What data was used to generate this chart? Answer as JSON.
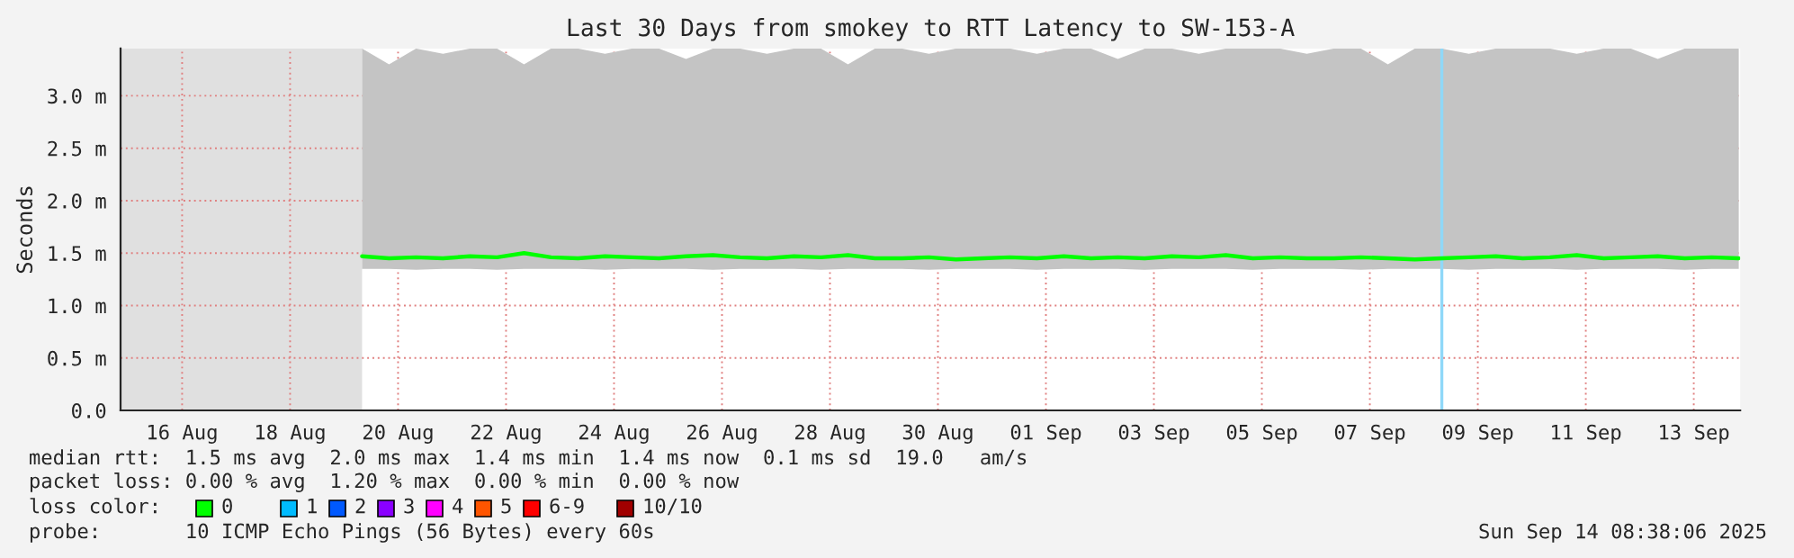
{
  "chart_data": {
    "type": "line",
    "title": "Last 30 Days from smokey to RTT Latency to SW-153-A",
    "ylabel": "Seconds",
    "x": [
      "2025-08-19T20:00",
      "2025-08-20T08:00",
      "2025-08-20T20:00",
      "2025-08-21T08:00",
      "2025-08-21T20:00",
      "2025-08-22T08:00",
      "2025-08-22T20:00",
      "2025-08-23T08:00",
      "2025-08-23T20:00",
      "2025-08-24T08:00",
      "2025-08-24T20:00",
      "2025-08-25T08:00",
      "2025-08-25T20:00",
      "2025-08-26T08:00",
      "2025-08-26T20:00",
      "2025-08-27T08:00",
      "2025-08-27T20:00",
      "2025-08-28T08:00",
      "2025-08-28T20:00",
      "2025-08-29T08:00",
      "2025-08-29T20:00",
      "2025-08-30T08:00",
      "2025-08-30T20:00",
      "2025-08-31T08:00",
      "2025-08-31T20:00",
      "2025-09-01T08:00",
      "2025-09-01T20:00",
      "2025-09-02T08:00",
      "2025-09-02T20:00",
      "2025-09-03T08:00",
      "2025-09-03T20:00",
      "2025-09-04T08:00",
      "2025-09-04T20:00",
      "2025-09-05T08:00",
      "2025-09-05T20:00",
      "2025-09-06T08:00",
      "2025-09-06T20:00",
      "2025-09-07T08:00",
      "2025-09-07T20:00",
      "2025-09-08T08:00",
      "2025-09-08T20:00",
      "2025-09-09T08:00",
      "2025-09-09T20:00",
      "2025-09-10T08:00",
      "2025-09-10T20:00",
      "2025-09-11T08:00",
      "2025-09-11T20:00",
      "2025-09-12T08:00",
      "2025-09-12T20:00",
      "2025-09-13T08:00",
      "2025-09-13T20:00",
      "2025-09-14T08:00"
    ],
    "series": [
      {
        "color": "#00ff00",
        "values": [
          1.47,
          1.45,
          1.46,
          1.45,
          1.47,
          1.46,
          1.5,
          1.46,
          1.45,
          1.47,
          1.46,
          1.45,
          1.47,
          1.48,
          1.46,
          1.45,
          1.47,
          1.46,
          1.48,
          1.45,
          1.45,
          1.46,
          1.44,
          1.45,
          1.46,
          1.45,
          1.47,
          1.45,
          1.46,
          1.45,
          1.47,
          1.46,
          1.48,
          1.45,
          1.46,
          1.45,
          1.45,
          1.46,
          1.45,
          1.44,
          1.45,
          1.46,
          1.47,
          1.45,
          1.46,
          1.48,
          1.45,
          1.46,
          1.47,
          1.45,
          1.46,
          1.45
        ],
        "lower": [
          1.35,
          1.35,
          1.34,
          1.35,
          1.35,
          1.34,
          1.35,
          1.35,
          1.35,
          1.34,
          1.35,
          1.35,
          1.35,
          1.34,
          1.35,
          1.35,
          1.35,
          1.34,
          1.35,
          1.35,
          1.35,
          1.34,
          1.35,
          1.35,
          1.35,
          1.34,
          1.35,
          1.35,
          1.35,
          1.34,
          1.35,
          1.35,
          1.35,
          1.34,
          1.35,
          1.35,
          1.35,
          1.34,
          1.35,
          1.35,
          1.35,
          1.34,
          1.35,
          1.35,
          1.35,
          1.34,
          1.35,
          1.35,
          1.35,
          1.34,
          1.35,
          1.35
        ],
        "upper": [
          3.45,
          3.3,
          3.45,
          3.4,
          3.45,
          3.45,
          3.3,
          3.45,
          3.45,
          3.4,
          3.45,
          3.45,
          3.35,
          3.45,
          3.45,
          3.4,
          3.45,
          3.45,
          3.3,
          3.45,
          3.45,
          3.4,
          3.45,
          3.45,
          3.45,
          3.4,
          3.45,
          3.45,
          3.35,
          3.45,
          3.45,
          3.4,
          3.45,
          3.45,
          3.45,
          3.4,
          3.45,
          3.45,
          3.3,
          3.45,
          3.45,
          3.4,
          3.45,
          3.45,
          3.45,
          3.4,
          3.45,
          3.45,
          3.35,
          3.45,
          3.45,
          3.45
        ]
      }
    ],
    "xlim": [
      "2025-08-15T08:38",
      "2025-09-14T08:38"
    ],
    "xticks": [
      {
        "value": "2025-08-16T12:00",
        "label": "16 Aug"
      },
      {
        "value": "2025-08-18T12:00",
        "label": "18 Aug"
      },
      {
        "value": "2025-08-20T12:00",
        "label": "20 Aug"
      },
      {
        "value": "2025-08-22T12:00",
        "label": "22 Aug"
      },
      {
        "value": "2025-08-24T12:00",
        "label": "24 Aug"
      },
      {
        "value": "2025-08-26T12:00",
        "label": "26 Aug"
      },
      {
        "value": "2025-08-28T12:00",
        "label": "28 Aug"
      },
      {
        "value": "2025-08-30T12:00",
        "label": "30 Aug"
      },
      {
        "value": "2025-09-01T12:00",
        "label": "01 Sep"
      },
      {
        "value": "2025-09-03T12:00",
        "label": "03 Sep"
      },
      {
        "value": "2025-09-05T12:00",
        "label": "05 Sep"
      },
      {
        "value": "2025-09-07T12:00",
        "label": "07 Sep"
      },
      {
        "value": "2025-09-09T12:00",
        "label": "09 Sep"
      },
      {
        "value": "2025-09-11T12:00",
        "label": "11 Sep"
      },
      {
        "value": "2025-09-13T12:00",
        "label": "13 Sep"
      }
    ],
    "ylim": [
      0,
      3.45
    ],
    "yticks": [
      {
        "value": 0,
        "label": "0.0"
      },
      {
        "value": 0.5,
        "label": "0.5 m"
      },
      {
        "value": 1.0,
        "label": "1.0 m"
      },
      {
        "value": 1.5,
        "label": "1.5 m"
      },
      {
        "value": 2.0,
        "label": "2.0 m"
      },
      {
        "value": 2.5,
        "label": "2.5 m"
      },
      {
        "value": 3.0,
        "label": "3.0 m"
      }
    ],
    "grid": true,
    "legend": false,
    "bands": [
      {
        "axis": "x",
        "from": "2025-08-15T08:38",
        "to": "2025-08-19T20:00",
        "color": "#e0e0e0"
      }
    ],
    "ref_lines": [
      {
        "axis": "x",
        "value": "2025-09-08T20:00",
        "color": "#8fd8f8"
      }
    ],
    "annotations": [
      "median rtt:  1.5 ms avg  2.0 ms max  1.4 ms min  1.4 ms now  0.1 ms sd  19.0   am/s",
      "packet loss: 0.00 % avg  1.20 % max  0.00 % min  0.00 % now",
      "loss color:",
      "0",
      "1",
      "2",
      "3",
      "4",
      "5",
      "6-9",
      "10/10",
      "probe:       10 ICMP Echo Pings (56 Bytes) every 60s",
      "Sun Sep 14 08:38:06 2025"
    ]
  }
}
